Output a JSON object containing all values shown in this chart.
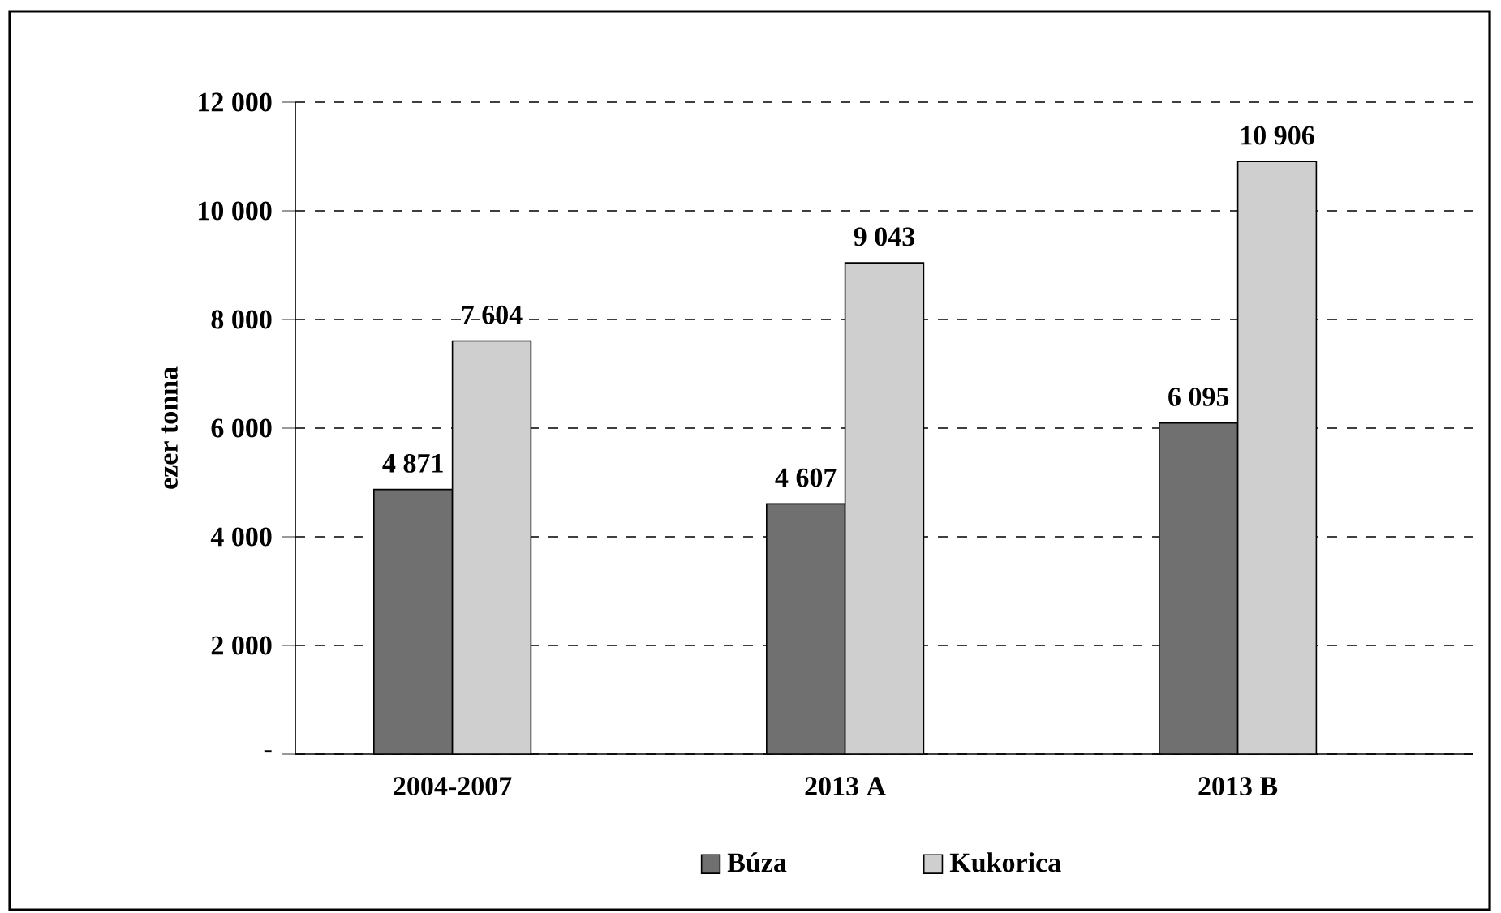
{
  "chart_data": {
    "type": "bar",
    "ylabel": "ezer tonna",
    "categories": [
      "2004-2007",
      "2013 A",
      "2013 B"
    ],
    "series": [
      {
        "name": "Búza",
        "color": "#707070",
        "values": [
          4871,
          4607,
          6095
        ],
        "value_labels": [
          "4 871",
          "4 607",
          "6 095"
        ]
      },
      {
        "name": "Kukorica",
        "color": "#cfcfcf",
        "values": [
          7604,
          9043,
          10906
        ],
        "value_labels": [
          "7 604",
          "9 043",
          "10 906"
        ]
      }
    ],
    "ylim": [
      0,
      12000
    ],
    "yticks": [
      {
        "value": 0,
        "label": "-"
      },
      {
        "value": 2000,
        "label": "2 000"
      },
      {
        "value": 4000,
        "label": "4 000"
      },
      {
        "value": 6000,
        "label": "6 000"
      },
      {
        "value": 8000,
        "label": "8 000"
      },
      {
        "value": 10000,
        "label": "10 000"
      },
      {
        "value": 12000,
        "label": "12 000"
      }
    ],
    "grid": "y",
    "legend": "bottom"
  }
}
